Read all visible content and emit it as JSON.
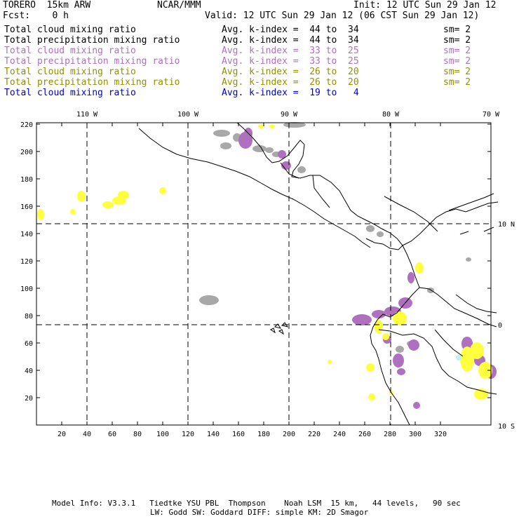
{
  "header": {
    "model": "TORERO  15km ARW",
    "org": "NCAR/MMM",
    "init": "Init: 12 UTC Sun 29 Jan 12",
    "fcst": "Fcst:    0 h",
    "valid": "Valid: 12 UTC Sun 29 Jan 12 (06 CST Sun 29 Jan 12)"
  },
  "legend": [
    {
      "field": "Total cloud mixing ratio",
      "kindex": "Avg. k-index =  44 to  34",
      "sm": "sm= 2",
      "color": "#000000"
    },
    {
      "field": "Total precipitation mixing ratio",
      "kindex": "Avg. k-index =  44 to  34",
      "sm": "sm= 2",
      "color": "#000000"
    },
    {
      "field": "Total cloud mixing ratio",
      "kindex": "Avg. k-index =  33 to  25",
      "sm": "sm= 2",
      "color": "#b070c0"
    },
    {
      "field": "Total precipitation mixing ratio",
      "kindex": "Avg. k-index =  33 to  25",
      "sm": "sm= 2",
      "color": "#b070c0"
    },
    {
      "field": "Total cloud mixing ratio",
      "kindex": "Avg. k-index =  26 to  20",
      "sm": "sm= 2",
      "color": "#909000"
    },
    {
      "field": "Total precipitation mixing ratio",
      "kindex": "Avg. k-index =  26 to  20",
      "sm": "sm= 2",
      "color": "#909000"
    },
    {
      "field": "Total cloud mixing ratio",
      "kindex": "Avg. k-index =  19 to   4",
      "sm": "",
      "color": "#0000d0"
    }
  ],
  "map": {
    "lon_labels": [
      "110 W",
      "100 W",
      "90 W",
      "80 W",
      "70 W"
    ],
    "lat_labels": [
      "10 N",
      "0",
      "10 S"
    ],
    "x_ticks": [
      "20",
      "40",
      "60",
      "80",
      "100",
      "120",
      "140",
      "160",
      "180",
      "200",
      "220",
      "240",
      "260",
      "280",
      "300",
      "320"
    ],
    "y_ticks": [
      "20",
      "40",
      "60",
      "80",
      "100",
      "120",
      "140",
      "160",
      "180",
      "200",
      "220"
    ],
    "colors": {
      "gray": "#a8a8a8",
      "purple": "#b070c0",
      "yellow": "#ffff40",
      "cyan": "#c0f0f0"
    }
  },
  "footer": {
    "line1": "Model Info: V3.3.1   Tiedtke YSU PBL  Thompson    Noah LSM  15 km,   44 levels,   90 sec",
    "line2": "LW: Godd SW: Goddard DIFF: simple KM: 2D Smagor"
  }
}
